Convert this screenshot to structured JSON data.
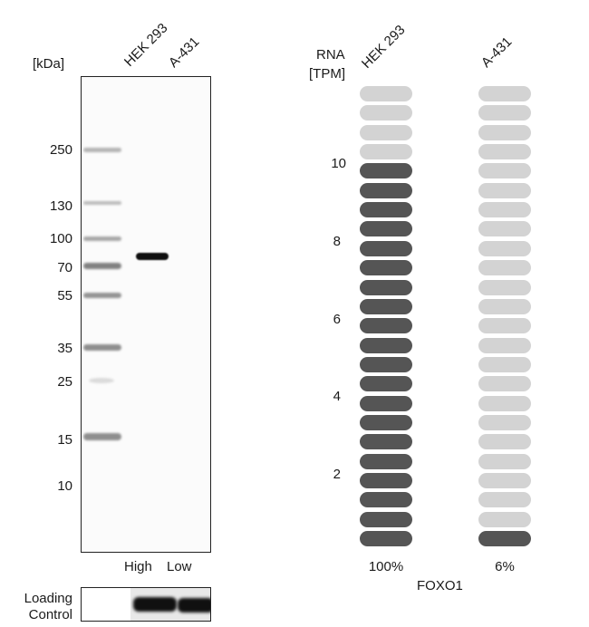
{
  "western_blot": {
    "kda_label": "[kDa]",
    "lanes": [
      "HEK 293",
      "A-431"
    ],
    "markers": [
      "250",
      "130",
      "100",
      "70",
      "55",
      "35",
      "25",
      "15",
      "10"
    ],
    "expression_labels": [
      "High",
      "Low"
    ],
    "loading_control_line1": "Loading",
    "loading_control_line2": "Control"
  },
  "rna": {
    "header_line1": "RNA",
    "header_line2": "[TPM]",
    "columns": [
      {
        "name": "HEK 293",
        "filled_units": 20,
        "total_units": 24,
        "percent_label": "100%"
      },
      {
        "name": "A-431",
        "filled_units": 1,
        "total_units": 24,
        "percent_label": "6%"
      }
    ],
    "scale_ticks": [
      "10",
      "8",
      "6",
      "4",
      "2"
    ],
    "gene": "FOXO1",
    "colors": {
      "filled": "#555555",
      "empty": "#d3d3d3"
    }
  }
}
